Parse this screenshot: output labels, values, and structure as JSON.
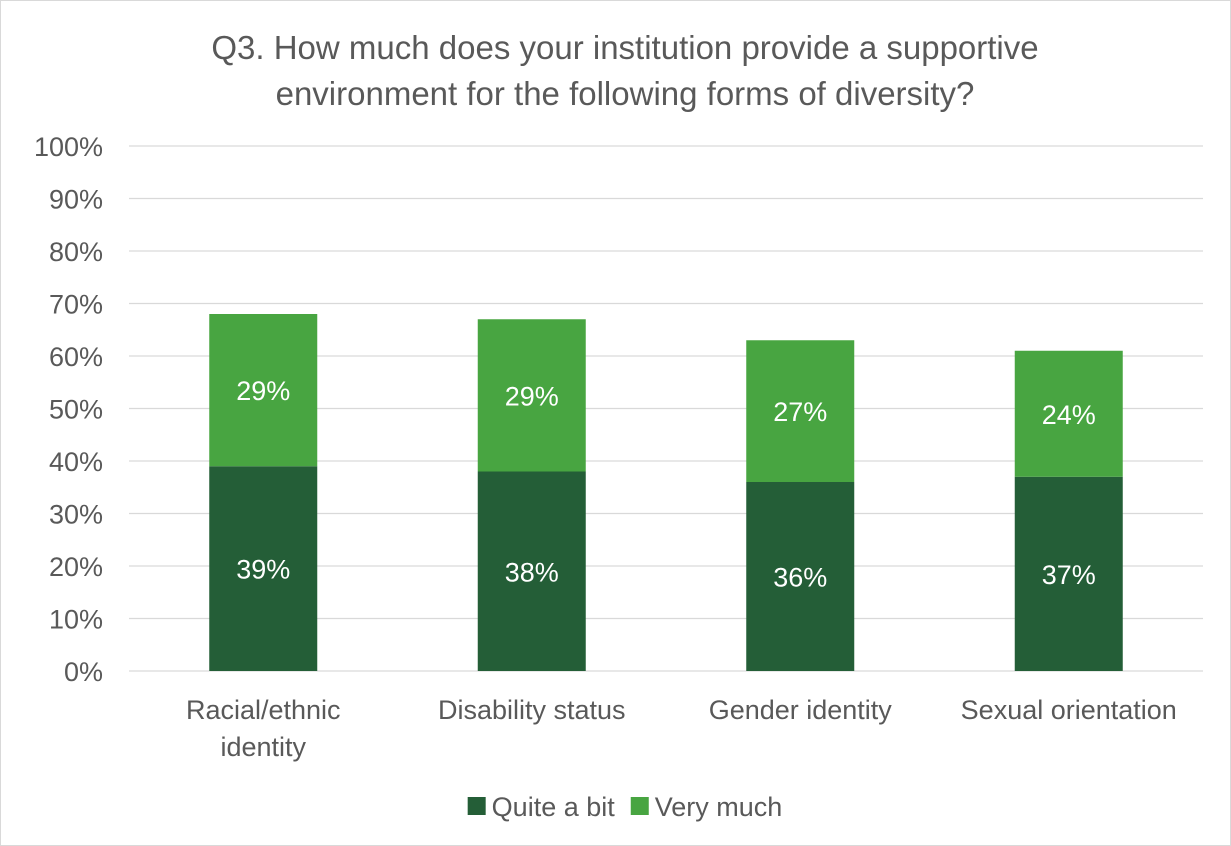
{
  "chart_data": {
    "type": "bar",
    "stacked": true,
    "title": "Q3. How much does your institution provide a supportive environment for the following forms of diversity?",
    "title_lines": [
      "Q3. How much does your institution provide a supportive",
      "environment for the following forms of diversity?"
    ],
    "categories": [
      "Racial/ethnic identity",
      "Disability status",
      "Gender identity",
      "Sexual orientation"
    ],
    "category_label_lines": [
      [
        "Racial/ethnic",
        "identity"
      ],
      [
        "Disability status"
      ],
      [
        "Gender identity"
      ],
      [
        "Sexual orientation"
      ]
    ],
    "series": [
      {
        "name": "Quite a bit",
        "values": [
          39,
          38,
          36,
          37
        ],
        "labels": [
          "39%",
          "38%",
          "36%",
          "37%"
        ],
        "color": "#245e37"
      },
      {
        "name": "Very much",
        "values": [
          29,
          29,
          27,
          24
        ],
        "labels": [
          "29%",
          "29%",
          "27%",
          "24%"
        ],
        "color": "#48a541"
      }
    ],
    "ylim": [
      0,
      100
    ],
    "yticks": [
      0,
      10,
      20,
      30,
      40,
      50,
      60,
      70,
      80,
      90,
      100
    ],
    "ytick_labels": [
      "0%",
      "10%",
      "20%",
      "30%",
      "40%",
      "50%",
      "60%",
      "70%",
      "80%",
      "90%",
      "100%"
    ],
    "xlabel": "",
    "ylabel": "",
    "grid": true,
    "legend_position": "bottom",
    "gridline_color": "#d9d9d9",
    "text_color": "#595959"
  }
}
